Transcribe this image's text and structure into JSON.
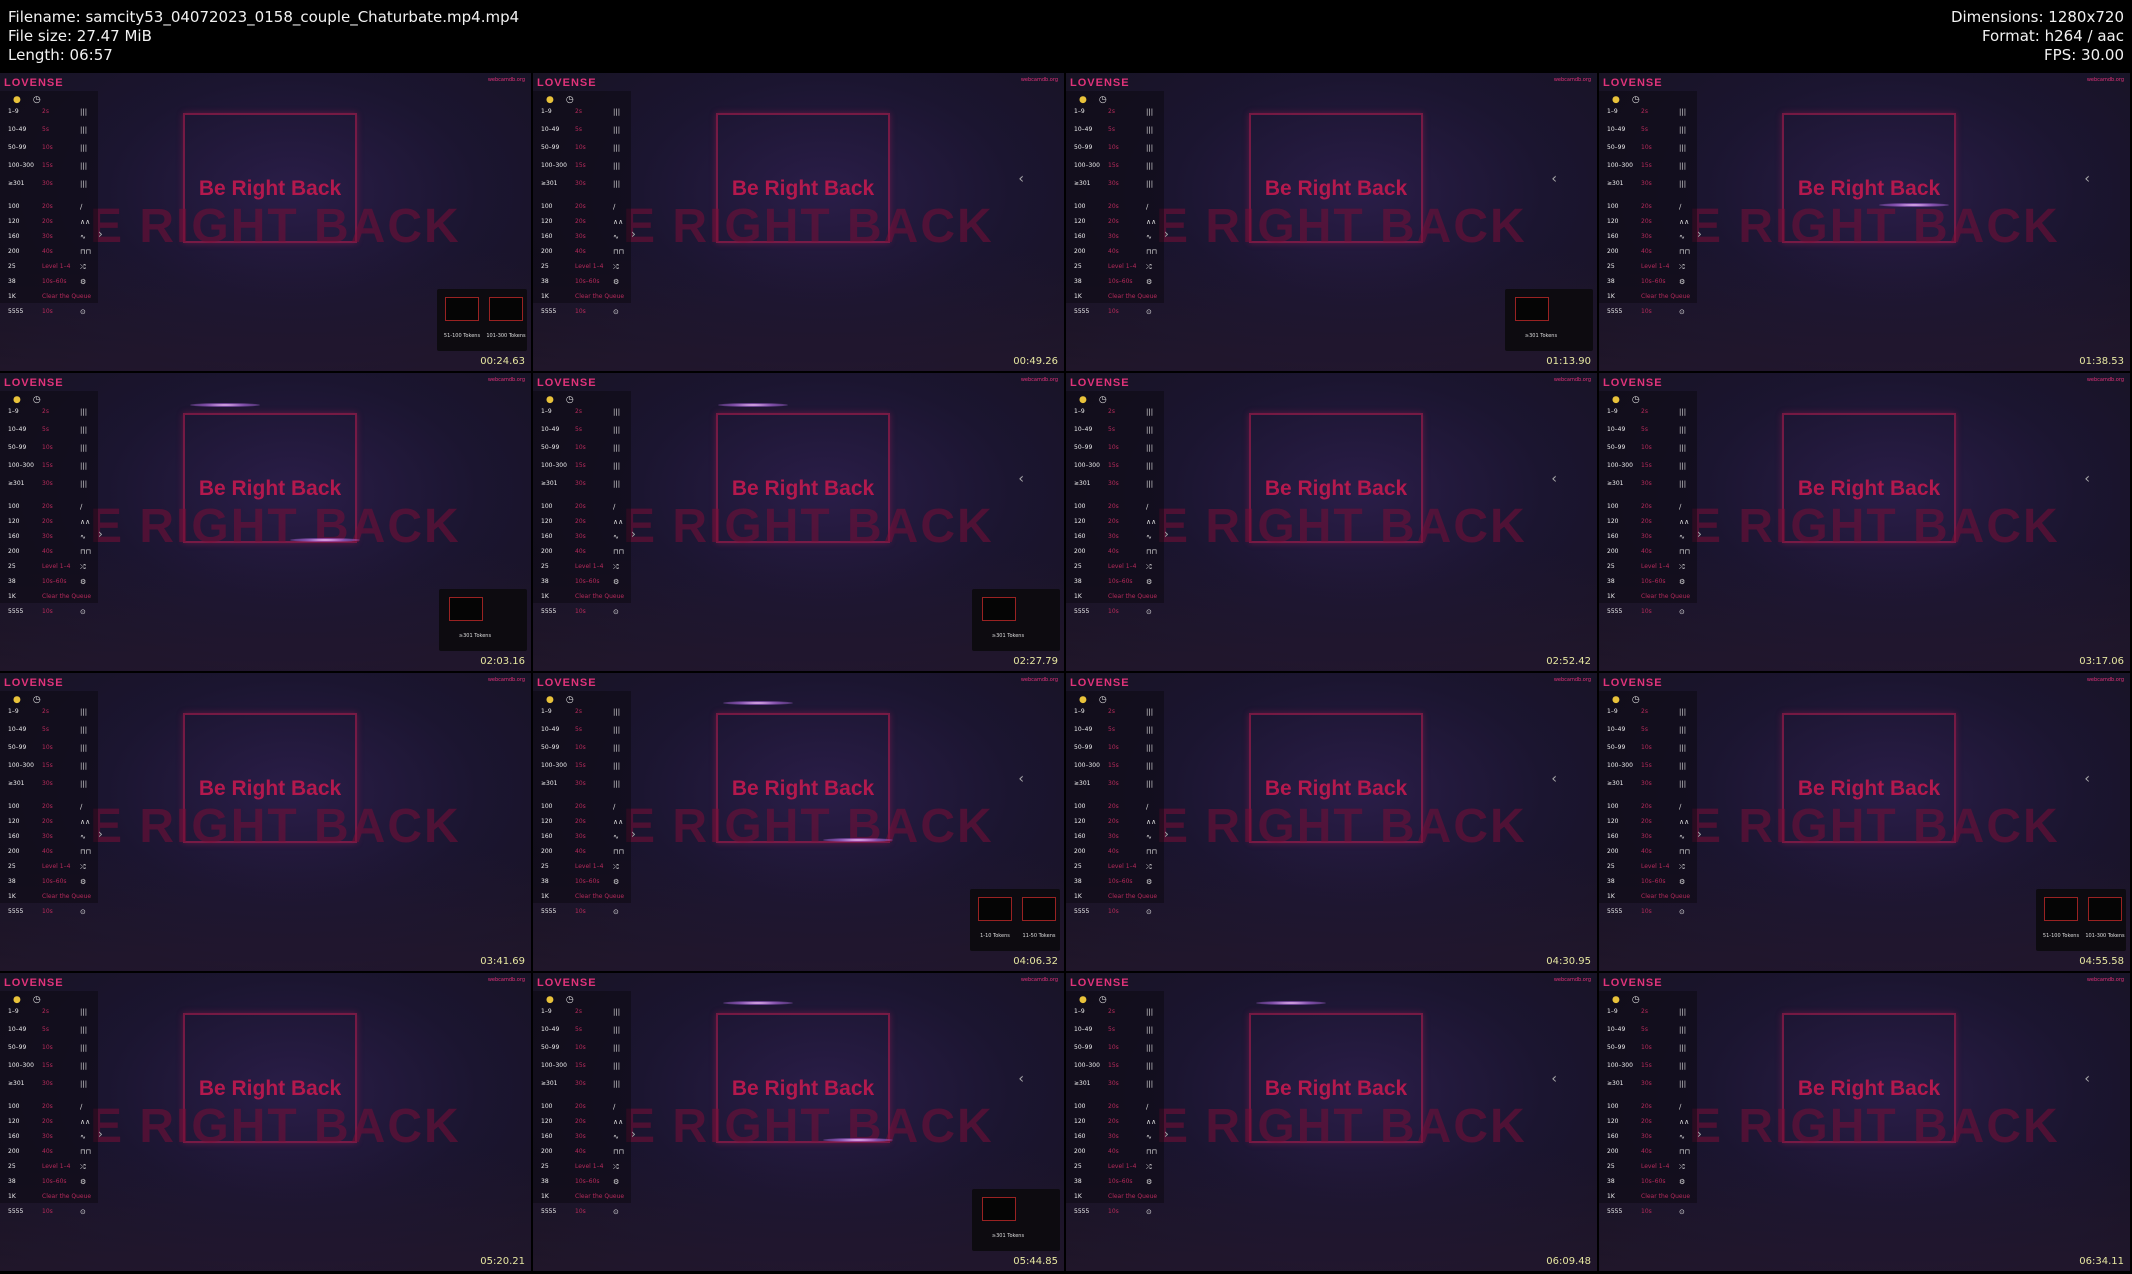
{
  "header": {
    "filename": "Filename: samcity53_04072023_0158_couple_Chaturbate.mp4.mp4",
    "file_size": "File size: 27.47 MiB",
    "length": "Length: 06:57",
    "dimensions": "Dimensions: 1280x720",
    "format": "Format: h264 / aac",
    "fps": "FPS: 30.00"
  },
  "overlay": {
    "brand": "LOVENSE",
    "site": "webcamdb.org",
    "brb": "Be Right Back",
    "brb_big": "E RIGHT BACK",
    "menu_rows": [
      {
        "label": "1–9",
        "val": "2s",
        "icon": "|||"
      },
      {
        "label": "10–49",
        "val": "5s",
        "icon": "|||"
      },
      {
        "label": "50–99",
        "val": "10s",
        "icon": "|||"
      },
      {
        "label": "100–300",
        "val": "15s",
        "icon": "|||"
      },
      {
        "label": "≥301",
        "val": "30s",
        "icon": "|||"
      },
      {
        "label": "100",
        "val": "20s",
        "icon": "∕"
      },
      {
        "label": "120",
        "val": "20s",
        "icon": "∧∧"
      },
      {
        "label": "160",
        "val": "30s",
        "icon": "∿"
      },
      {
        "label": "200",
        "val": "40s",
        "icon": "⊓⊓"
      },
      {
        "label": "25",
        "val": "Level 1–4",
        "icon": "⤮"
      },
      {
        "label": "38",
        "val": "10s–60s",
        "icon": "⚙"
      },
      {
        "label": "1K",
        "val": "Clear the Queue",
        "icon": ""
      },
      {
        "label": "5555",
        "val": "10s",
        "icon": "⊙"
      }
    ]
  },
  "thumbnails": [
    {
      "ts": "00:24.63",
      "tip": {
        "labels": [
          "51-100 Tokens",
          "101-300 Tokens"
        ]
      }
    },
    {
      "ts": "00:49.26",
      "tip": null
    },
    {
      "ts": "01:13.90",
      "tip": {
        "labels": [
          "≥301 Tokens"
        ]
      }
    },
    {
      "ts": "01:38.53",
      "tip": null
    },
    {
      "ts": "02:03.16",
      "tip": {
        "labels": [
          "≥301 Tokens"
        ]
      }
    },
    {
      "ts": "02:27.79",
      "tip": {
        "labels": [
          "≥301 Tokens"
        ]
      }
    },
    {
      "ts": "02:52.42",
      "tip": null
    },
    {
      "ts": "03:17.06",
      "tip": null
    },
    {
      "ts": "03:41.69",
      "tip": null
    },
    {
      "ts": "04:06.32",
      "tip": {
        "labels": [
          "1-10 Tokens",
          "11-50 Tokens"
        ]
      }
    },
    {
      "ts": "04:30.95",
      "tip": null
    },
    {
      "ts": "04:55.58",
      "tip": {
        "labels": [
          "51-100 Tokens",
          "101-300 Tokens"
        ]
      }
    },
    {
      "ts": "05:20.21",
      "tip": null
    },
    {
      "ts": "05:44.85",
      "tip": {
        "labels": [
          "≥301 Tokens"
        ]
      }
    },
    {
      "ts": "06:09.48",
      "tip": null
    },
    {
      "ts": "06:34.11",
      "tip": null
    }
  ]
}
